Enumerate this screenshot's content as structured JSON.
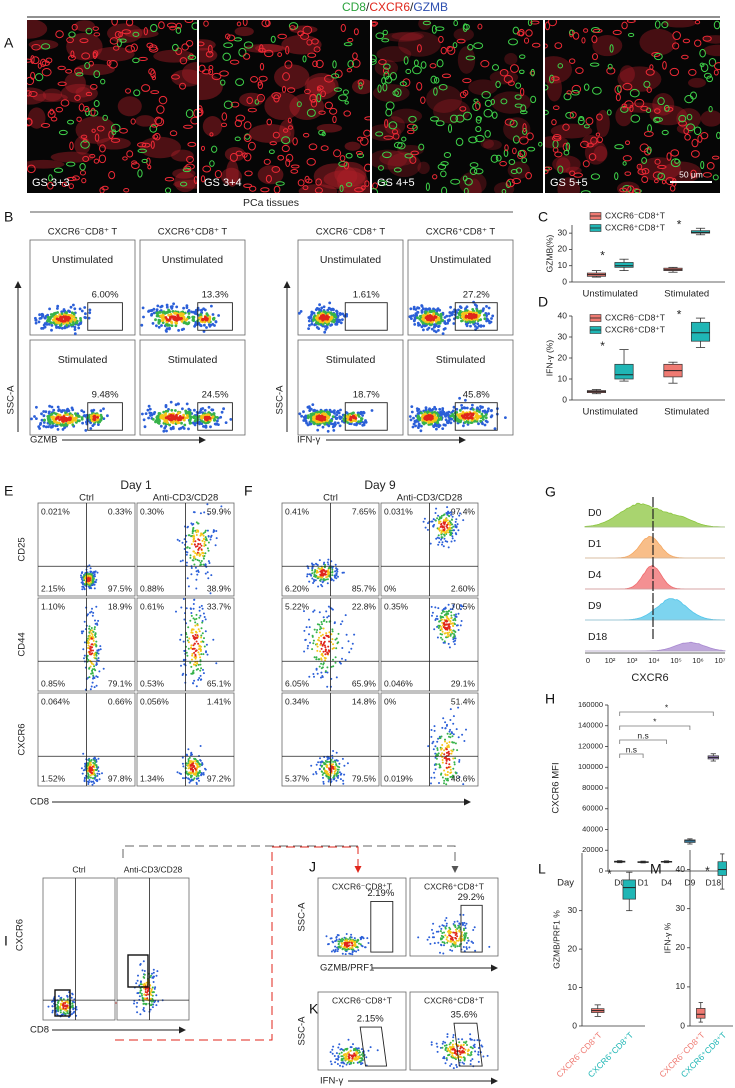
{
  "figure_title": [
    "CD8",
    "/",
    "CXCR6",
    "/",
    "GZMB"
  ],
  "panel_A": {
    "letter": "A",
    "labels": [
      "GS 3+3",
      "GS 3+4",
      "GS 4+5",
      "GS 5+5"
    ],
    "scale_bar": "50 μm"
  },
  "panel_B": {
    "letter": "B",
    "title": "PCa tissues",
    "columns": [
      "CXCR6⁻CD8⁺ T",
      "CXCR6⁺CD8⁺ T",
      "CXCR6⁻CD8⁺ T",
      "CXCR6⁺CD8⁺ T"
    ],
    "plots": [
      [
        {
          "label": "Unstimulated",
          "value": "6.00%"
        },
        {
          "label": "Unstimulated",
          "value": "13.3%"
        },
        {
          "label": "Unstimulated",
          "value": "1.61%"
        },
        {
          "label": "Unstimulated",
          "value": "27.2%"
        }
      ],
      [
        {
          "label": "Stimulated",
          "value": "9.48%"
        },
        {
          "label": "Stimulated",
          "value": "24.5%"
        },
        {
          "label": "Stimulated",
          "value": "18.7%"
        },
        {
          "label": "Stimulated",
          "value": "45.8%"
        }
      ]
    ],
    "y_axis_labels": [
      "SSC-A",
      "SSC-A"
    ],
    "x_axis_labels": [
      "GZMB",
      "IFN-γ"
    ]
  },
  "chart_data": [
    {
      "panel": "C",
      "type": "box",
      "ylabel": "GZMB(%)",
      "categories": [
        "Unstimulated",
        "Stimulated"
      ],
      "series": [
        {
          "name": "CXCR6⁻CD8⁺T",
          "color": "#ef7a72",
          "values": [
            [
              3,
              3.5,
              4.5,
              5.5,
              7
            ],
            [
              6,
              7,
              7.5,
              8.5,
              9
            ]
          ]
        },
        {
          "name": "CXCR6⁺CD8⁺T",
          "color": "#1fb6b5",
          "values": [
            [
              7,
              9,
              10,
              12,
              14
            ],
            [
              29,
              30,
              30.5,
              31.5,
              33
            ]
          ]
        }
      ],
      "ylim": [
        0,
        35
      ],
      "yticks": [
        0,
        10,
        20,
        30
      ],
      "annotations": [
        "*",
        "*"
      ]
    },
    {
      "panel": "D",
      "type": "box",
      "ylabel": "IFN-γ (%)",
      "categories": [
        "Unstimulated",
        "Stimulated"
      ],
      "series": [
        {
          "name": "CXCR6⁻CD8⁺T",
          "color": "#ef7a72",
          "values": [
            [
              3,
              3.5,
              4,
              4.5,
              5
            ],
            [
              8,
              11,
              14,
              17,
              18
            ]
          ]
        },
        {
          "name": "CXCR6⁺CD8⁺T",
          "color": "#1fb6b5",
          "values": [
            [
              9,
              10,
              12,
              17,
              24
            ],
            [
              25,
              28,
              32,
              37,
              39
            ]
          ]
        }
      ],
      "ylim": [
        0,
        40
      ],
      "yticks": [
        0,
        10,
        20,
        30,
        40
      ],
      "annotations": [
        "*",
        "*"
      ]
    },
    {
      "panel": "H",
      "type": "box",
      "ylabel": "CXCR6 MFI",
      "xlabel": "Day",
      "categories": [
        "D0",
        "D1",
        "D4",
        "D9",
        "D18"
      ],
      "values": [
        [
          8000,
          8500,
          9000,
          9500,
          10000
        ],
        [
          7800,
          8200,
          8500,
          9000,
          9500
        ],
        [
          8000,
          8500,
          9000,
          9300,
          9800
        ],
        [
          26000,
          27500,
          29000,
          30000,
          31000
        ],
        [
          106000,
          108000,
          109500,
          111000,
          113000
        ]
      ],
      "colors": [
        "#e8736c",
        "#c9a13a",
        "#4fb36b",
        "#3fa9e0",
        "#a98ad1"
      ],
      "ylim": [
        0,
        160000
      ],
      "yticks": [
        0,
        20000,
        40000,
        60000,
        80000,
        100000,
        120000,
        140000,
        160000
      ],
      "annotations": [
        "*",
        "*",
        "n.s",
        "n.s"
      ]
    },
    {
      "panel": "L",
      "type": "box",
      "ylabel": "GZMB/PRF1 %",
      "categories": [
        "CXCR6⁻CD8⁺T",
        "CXCR6⁺CD8⁺T"
      ],
      "values": [
        [
          2.5,
          3.5,
          4,
          4.5,
          5.5
        ],
        [
          30,
          33,
          36,
          38,
          40
        ]
      ],
      "colors": [
        "#ef7a72",
        "#1fb6b5"
      ],
      "ylim": [
        0,
        45
      ],
      "yticks": [
        0,
        10,
        20,
        30
      ],
      "annotations": [
        "*"
      ]
    },
    {
      "panel": "M",
      "type": "box",
      "ylabel": "IFN-γ %",
      "categories": [
        "CXCR6⁻CD8⁺T",
        "CXCR6⁺CD8⁺T"
      ],
      "values": [
        [
          1,
          2,
          3,
          4.5,
          6
        ],
        [
          35,
          38.5,
          40,
          42,
          44
        ]
      ],
      "colors": [
        "#ef7a72",
        "#1fb6b5"
      ],
      "ylim": [
        0,
        45
      ],
      "yticks": [
        0,
        10,
        20,
        30,
        40
      ],
      "annotations": [
        "*"
      ]
    }
  ],
  "panel_E": {
    "letter": "E",
    "title": "Day 1",
    "columns": [
      "Ctrl",
      "Anti-CD3/CD28"
    ],
    "row_labels": [
      "CD25",
      "CD44",
      "CXCR6"
    ],
    "x_label": "CD8",
    "quadrants": [
      [
        [
          "0.021%",
          "0.33%",
          "2.15%",
          "97.5%"
        ],
        [
          "0.30%",
          "59.9%",
          "0.88%",
          "38.9%"
        ]
      ],
      [
        [
          "1.10%",
          "18.9%",
          "0.85%",
          "79.1%"
        ],
        [
          "0.61%",
          "33.7%",
          "0.53%",
          "65.1%"
        ]
      ],
      [
        [
          "0.064%",
          "0.66%",
          "1.52%",
          "97.8%"
        ],
        [
          "0.056%",
          "1.41%",
          "1.34%",
          "97.2%"
        ]
      ]
    ]
  },
  "panel_F": {
    "letter": "F",
    "title": "Day 9",
    "columns": [
      "Ctrl",
      "Anti-CD3/CD28"
    ],
    "quadrants": [
      [
        [
          "0.41%",
          "7.65%",
          "6.20%",
          "85.7%"
        ],
        [
          "0.031%",
          "97.4%",
          "0%",
          "2.60%"
        ]
      ],
      [
        [
          "5.22%",
          "22.8%",
          "6.05%",
          "65.9%"
        ],
        [
          "0.35%",
          "70.5%",
          "0.046%",
          "29.1%"
        ]
      ],
      [
        [
          "0.34%",
          "14.8%",
          "5.37%",
          "79.5%"
        ],
        [
          "0%",
          "51.4%",
          "0.019%",
          "48.6%"
        ]
      ]
    ]
  },
  "panel_G": {
    "letter": "G",
    "days": [
      "D0",
      "D1",
      "D4",
      "D9",
      "D18"
    ],
    "colors": [
      "#8cc63f",
      "#f5a862",
      "#f06b6e",
      "#52c5ea",
      "#a98ad1"
    ],
    "ticks": [
      "0",
      "10²",
      "10³",
      "10⁴",
      "10⁵",
      "10⁶",
      "10⁷"
    ],
    "x_label": "CXCR6"
  },
  "panel_I": {
    "letter": "I",
    "columns": [
      "Ctrl",
      "Anti-CD3/CD28"
    ],
    "y_label": "CXCR6",
    "x_label": "CD8"
  },
  "panel_J": {
    "letter": "J",
    "columns": [
      "CXCR6⁻CD8⁺T",
      "CXCR6⁺CD8⁺T"
    ],
    "values": [
      "2.19%",
      "29.2%"
    ],
    "y_label": "SSC-A",
    "x_label": "GZMB/PRF1"
  },
  "panel_K": {
    "letter": "K",
    "columns": [
      "CXCR6⁻CD8⁺T",
      "CXCR6⁺CD8⁺T"
    ],
    "values": [
      "2.15%",
      "35.6%"
    ],
    "y_label": "SSC-A",
    "x_label": "IFN-γ"
  }
}
